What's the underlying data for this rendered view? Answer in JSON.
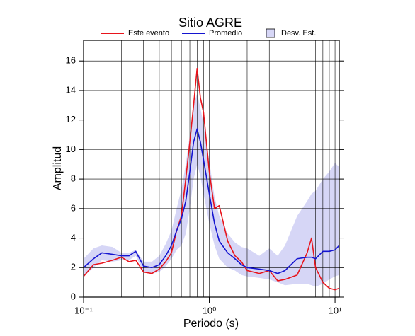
{
  "chart_data": {
    "type": "line",
    "title": "Sitio AGRE",
    "x_label": "Periodo (s)",
    "y_label": "Amplitud",
    "x_scale": "log",
    "grid": true,
    "xlim": [
      0.1,
      10.8
    ],
    "ylim": [
      0,
      17.4
    ],
    "xticks": [
      {
        "value": 0.1,
        "label": "10⁻¹"
      },
      {
        "value": 1,
        "label": "10⁰"
      },
      {
        "value": 10,
        "label": "10¹"
      }
    ],
    "yticks": [
      0,
      2,
      4,
      6,
      8,
      10,
      12,
      14,
      16
    ],
    "x": [
      0.1,
      0.12,
      0.14,
      0.17,
      0.2,
      0.23,
      0.26,
      0.3,
      0.35,
      0.4,
      0.45,
      0.5,
      0.55,
      0.6,
      0.65,
      0.7,
      0.75,
      0.8,
      0.85,
      0.9,
      1.0,
      1.1,
      1.2,
      1.4,
      1.6,
      1.8,
      2.0,
      2.5,
      3.0,
      3.5,
      4.0,
      5.0,
      6.0,
      6.5,
      7.0,
      8.0,
      9.0,
      10.0,
      10.8
    ],
    "series": [
      {
        "name": "Este evento",
        "color": "#e8141c",
        "values": [
          1.4,
          2.2,
          2.3,
          2.5,
          2.7,
          2.4,
          2.5,
          1.7,
          1.6,
          1.9,
          2.4,
          3.0,
          4.5,
          5.5,
          8.0,
          10.5,
          13.0,
          15.5,
          13.5,
          12.5,
          8.5,
          6.0,
          6.2,
          3.8,
          2.8,
          2.4,
          1.8,
          1.6,
          1.8,
          1.1,
          1.2,
          1.5,
          3.0,
          4.0,
          2.0,
          1.0,
          0.6,
          0.5,
          0.6
        ]
      },
      {
        "name": "Promedio",
        "color": "#1414d0",
        "values": [
          2.0,
          2.6,
          3.0,
          2.9,
          2.8,
          2.8,
          3.1,
          2.1,
          2.0,
          2.2,
          2.8,
          3.5,
          4.5,
          5.3,
          6.5,
          8.5,
          10.5,
          11.4,
          10.5,
          9.3,
          7.0,
          5.0,
          3.8,
          3.0,
          2.6,
          2.2,
          2.0,
          1.9,
          1.8,
          1.6,
          1.8,
          2.6,
          2.7,
          2.7,
          2.6,
          3.1,
          3.1,
          3.2,
          3.5
        ]
      },
      {
        "name": "Desv. Est.",
        "color": "#d6d6f6",
        "upper": [
          2.6,
          3.3,
          3.5,
          3.4,
          3.0,
          3.0,
          3.2,
          2.4,
          2.4,
          2.8,
          3.6,
          4.5,
          6.0,
          7.3,
          9.0,
          11.0,
          13.0,
          13.8,
          12.8,
          11.7,
          9.2,
          6.8,
          5.5,
          4.3,
          3.7,
          3.4,
          3.3,
          2.8,
          3.3,
          2.8,
          3.5,
          5.5,
          6.5,
          7.0,
          7.2,
          8.0,
          8.5,
          9.1,
          8.8
        ],
        "lower": [
          1.4,
          2.0,
          2.5,
          2.4,
          2.5,
          2.5,
          2.8,
          1.7,
          1.6,
          1.7,
          2.1,
          2.6,
          3.2,
          3.5,
          4.3,
          6.0,
          8.0,
          9.0,
          8.2,
          7.0,
          5.0,
          3.5,
          2.6,
          2.0,
          1.8,
          1.5,
          1.4,
          1.3,
          1.2,
          1.0,
          0.8,
          0.9,
          0.9,
          0.8,
          0.7,
          0.9,
          1.2,
          1.4,
          1.5
        ]
      }
    ]
  }
}
